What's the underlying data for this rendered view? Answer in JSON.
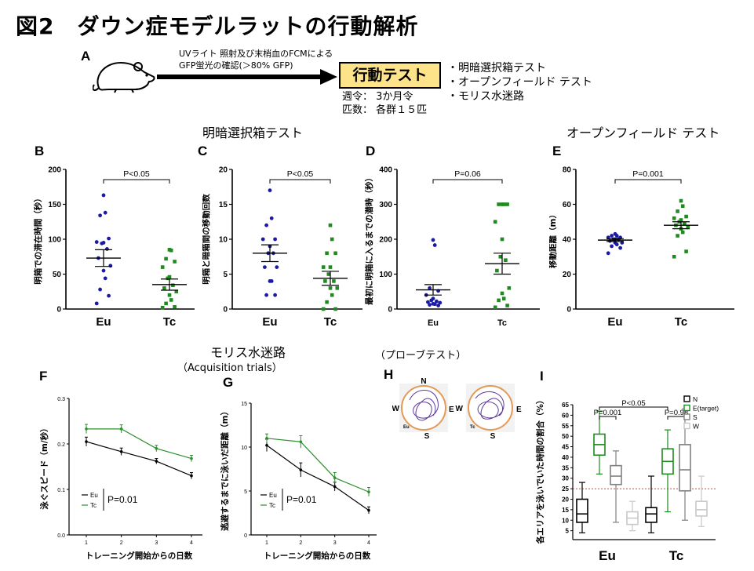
{
  "figure_title": "図2　ダウン症モデルラットの行動解析",
  "panel_a": {
    "label": "A",
    "arrow_text_1": "UVライト 照射及び末梢血のFCMによる",
    "arrow_text_2": "GFP蛍光の確認(＞80%  GFP)",
    "behavior_box": "行動テスト",
    "tests": [
      "明暗選択箱テスト",
      "オープンフィールド テスト",
      "モリス水迷路"
    ],
    "age": "週令： 3か月令",
    "count": "匹数： 各群１５匹",
    "icon": "rat-icon"
  },
  "section_titles": {
    "light_dark": "明暗選択箱テスト",
    "open_field": "オープンフィールド テスト",
    "morris": "モリス水迷路",
    "acq": "（Acquisition trials）",
    "probe": "（プローブテスト）"
  },
  "colors": {
    "eu": "#1a1aa6",
    "tc": "#1f8a1f",
    "tc_line": "#2d8f2d"
  },
  "chart_data": [
    {
      "panel": "B",
      "type": "scatter",
      "ylabel": "明箱での滞在時間（秒）",
      "categories": [
        "Eu",
        "Tc"
      ],
      "ylim": [
        0,
        200
      ],
      "yticks": [
        0,
        50,
        100,
        150,
        200
      ],
      "annotation": "P<0.05",
      "mean": [
        73,
        35
      ],
      "sem": [
        12,
        8
      ],
      "points": [
        [
          163,
          138,
          134,
          101,
          96,
          95,
          94,
          86,
          73,
          62,
          55,
          44,
          28,
          19,
          8
        ],
        [
          85,
          84,
          72,
          68,
          60,
          46,
          44,
          34,
          30,
          25,
          20,
          13,
          8,
          3,
          2
        ]
      ]
    },
    {
      "panel": "C",
      "type": "scatter",
      "ylabel": "明箱と暗箱間の移動回数",
      "categories": [
        "Eu",
        "Tc"
      ],
      "ylim": [
        0,
        20
      ],
      "yticks": [
        0,
        5,
        10,
        15,
        20
      ],
      "annotation": "P<0.05",
      "mean": [
        8,
        4.4
      ],
      "sem": [
        1.2,
        1.0
      ],
      "points": [
        [
          17,
          13,
          12,
          10,
          10,
          9,
          8,
          8,
          6,
          6,
          4,
          4,
          2,
          2
        ],
        [
          12,
          10,
          8,
          8,
          6,
          6,
          5,
          4,
          4,
          3,
          3,
          2,
          1,
          0,
          0
        ]
      ]
    },
    {
      "panel": "D",
      "type": "scatter",
      "ylabel": "最初に明箱に入るまでの潜時（秒）",
      "categories": [
        "Eu",
        "Tc"
      ],
      "ylim": [
        0,
        400
      ],
      "yticks": [
        0,
        100,
        200,
        300,
        400
      ],
      "annotation": "P=0.06",
      "mean": [
        55,
        130
      ],
      "sem": [
        15,
        30
      ],
      "points": [
        [
          198,
          183,
          60,
          52,
          40,
          30,
          25,
          22,
          20,
          18,
          15,
          14,
          12,
          10
        ],
        [
          300,
          300,
          300,
          300,
          250,
          200,
          150,
          140,
          110,
          60,
          45,
          30,
          25,
          10,
          5
        ]
      ]
    },
    {
      "panel": "E",
      "type": "scatter",
      "ylabel": "移動距離（m）",
      "categories": [
        "Eu",
        "Tc"
      ],
      "ylim": [
        0,
        80
      ],
      "yticks": [
        0,
        20,
        40,
        60,
        80
      ],
      "annotation": "P=0.001",
      "mean": [
        39.5,
        48
      ],
      "sem": [
        0.8,
        2.0
      ],
      "points": [
        [
          43,
          42,
          42,
          41,
          41,
          40,
          40,
          40,
          39,
          38,
          38,
          37,
          36,
          35,
          32
        ],
        [
          62,
          59,
          56,
          53,
          52,
          51,
          50,
          49,
          48,
          47,
          46,
          44,
          42,
          33,
          30
        ]
      ]
    },
    {
      "panel": "F",
      "type": "line",
      "ylabel": "泳ぐスピード（m/秒）",
      "xlabel": "トレーニング開始からの日数",
      "x": [
        1,
        2,
        3,
        4
      ],
      "ylim": [
        0,
        0.3
      ],
      "yticks": [
        0.0,
        0.1,
        0.2,
        0.3
      ],
      "ytick_labels": [
        "0.0",
        "0.1",
        "0.2",
        "0.3"
      ],
      "annotation": "P=0.01",
      "series": [
        {
          "name": "Eu",
          "values": [
            0.205,
            0.183,
            0.162,
            0.13
          ],
          "err": [
            0.01,
            0.008,
            0.006,
            0.007
          ]
        },
        {
          "name": "Tc",
          "values": [
            0.233,
            0.233,
            0.19,
            0.168
          ],
          "err": [
            0.01,
            0.009,
            0.007,
            0.007
          ]
        }
      ]
    },
    {
      "panel": "G",
      "type": "line",
      "ylabel": "逃避するまでに泳いだ距離（m）",
      "xlabel": "トレーニング開始からの日数",
      "x": [
        1,
        2,
        3,
        4
      ],
      "ylim": [
        0,
        15
      ],
      "yticks": [
        0,
        5,
        10,
        15
      ],
      "ytick_labels": [
        "0",
        "5",
        "10",
        "15"
      ],
      "annotation": "P=0.01",
      "series": [
        {
          "name": "Eu",
          "values": [
            10.2,
            7.4,
            5.5,
            2.8
          ],
          "err": [
            0.7,
            0.8,
            0.5,
            0.4
          ]
        },
        {
          "name": "Tc",
          "values": [
            11.0,
            10.6,
            6.5,
            4.9
          ],
          "err": [
            0.5,
            0.7,
            0.6,
            0.5
          ]
        }
      ]
    },
    {
      "panel": "I",
      "type": "box",
      "ylabel": "各エリアを泳いでいた時間の割合（%）",
      "groups": [
        "Eu",
        "Tc"
      ],
      "quadrants": [
        "N",
        "E(target)",
        "S",
        "W"
      ],
      "quadrant_colors": [
        "#000000",
        "#1f8a1f",
        "#808080",
        "#c8c8c8"
      ],
      "ylim": [
        3,
        65
      ],
      "yticks": [
        5,
        10,
        15,
        20,
        25,
        30,
        35,
        40,
        45,
        50,
        55,
        60,
        65
      ],
      "chance_line": 25,
      "annotations": [
        "P<0.05",
        "P=0.001",
        "P=0.98"
      ],
      "boxes": [
        [
          [
            4,
            9,
            13,
            20,
            28
          ],
          [
            32,
            41,
            46,
            51,
            62
          ],
          [
            9,
            27,
            31,
            36,
            43
          ],
          [
            5,
            8,
            11,
            14,
            19
          ]
        ],
        [
          [
            4,
            9,
            13,
            16,
            31
          ],
          [
            14,
            32,
            38,
            44,
            53
          ],
          [
            10,
            24,
            34,
            46,
            63
          ],
          [
            7,
            12,
            15,
            19,
            31
          ]
        ]
      ]
    }
  ],
  "panel_h": {
    "label": "H",
    "compass": [
      "N",
      "W",
      "E",
      "S"
    ],
    "groups": [
      "Eu",
      "Tc"
    ]
  }
}
